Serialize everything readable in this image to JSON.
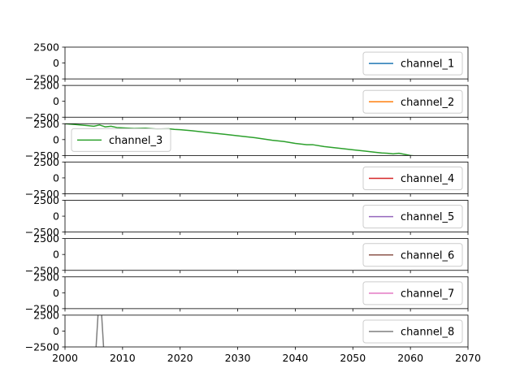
{
  "chart_data": {
    "type": "line",
    "layout": "stacked-subplots",
    "sharex": true,
    "xlim": [
      2000,
      2070
    ],
    "x_ticks": [
      2000,
      2010,
      2020,
      2030,
      2040,
      2050,
      2060,
      2070
    ],
    "x_tick_labels": [
      "2000",
      "2010",
      "2020",
      "2030",
      "2040",
      "2050",
      "2060",
      "2070"
    ],
    "grid": false,
    "subplots": [
      {
        "name": "channel_1",
        "color": "#1f77b4",
        "ylim": [
          -2500,
          2500
        ],
        "y_ticks": [
          -2500,
          0,
          2500
        ],
        "y_tick_labels": [
          "−2500",
          "0",
          "2500"
        ],
        "legend_position": "lower-right",
        "x": [],
        "y": []
      },
      {
        "name": "channel_2",
        "color": "#ff7f0e",
        "ylim": [
          -2500,
          2500
        ],
        "y_ticks": [
          -2500,
          0,
          2500
        ],
        "y_tick_labels": [
          "−2500",
          "0",
          "2500"
        ],
        "legend_position": "lower-right",
        "x": [],
        "y": []
      },
      {
        "name": "channel_3",
        "color": "#2ca02c",
        "ylim": [
          -2500,
          2500
        ],
        "y_ticks": [
          -2500,
          0,
          2500
        ],
        "y_tick_labels": [
          "−2500",
          "0",
          "2500"
        ],
        "legend_position": "lower-left",
        "x": [
          2000,
          2002,
          2004,
          2005,
          2006,
          2007,
          2008,
          2009,
          2010,
          2012,
          2014,
          2016,
          2018,
          2019,
          2020,
          2022,
          2025,
          2028,
          2030,
          2033,
          2036,
          2038,
          2040,
          2042,
          2043,
          2045,
          2048,
          2050,
          2052,
          2054,
          2055,
          2056,
          2057,
          2058,
          2060,
          2062,
          2064,
          2066,
          2068,
          2070
        ],
        "y": [
          2500,
          2350,
          2200,
          2100,
          2300,
          2000,
          2100,
          1900,
          1850,
          1750,
          1800,
          1650,
          1700,
          1600,
          1550,
          1400,
          1100,
          800,
          600,
          300,
          -100,
          -300,
          -600,
          -800,
          -800,
          -1100,
          -1400,
          -1600,
          -1800,
          -2000,
          -2100,
          -2150,
          -2250,
          -2150,
          -2500,
          -2650,
          -2700,
          -2850,
          -2950,
          -3100
        ]
      },
      {
        "name": "channel_4",
        "color": "#d62728",
        "ylim": [
          -2500,
          2500
        ],
        "y_ticks": [
          -2500,
          0,
          2500
        ],
        "y_tick_labels": [
          "−2500",
          "0",
          "2500"
        ],
        "legend_position": "lower-right",
        "x": [],
        "y": []
      },
      {
        "name": "channel_5",
        "color": "#9467bd",
        "ylim": [
          -2500,
          2500
        ],
        "y_ticks": [
          -2500,
          0,
          2500
        ],
        "y_tick_labels": [
          "−2500",
          "0",
          "2500"
        ],
        "legend_position": "lower-right",
        "x": [],
        "y": []
      },
      {
        "name": "channel_6",
        "color": "#8c564b",
        "ylim": [
          -2500,
          2500
        ],
        "y_ticks": [
          -2500,
          0,
          2500
        ],
        "y_tick_labels": [
          "−2500",
          "0",
          "2500"
        ],
        "legend_position": "lower-right",
        "x": [],
        "y": []
      },
      {
        "name": "channel_7",
        "color": "#e377c2",
        "ylim": [
          -2500,
          2500
        ],
        "y_ticks": [
          -2500,
          0,
          2500
        ],
        "y_tick_labels": [
          "−2500",
          "0",
          "2500"
        ],
        "legend_position": "lower-right",
        "x": [],
        "y": []
      },
      {
        "name": "channel_8",
        "color": "#7f7f7f",
        "ylim": [
          -2500,
          2500
        ],
        "y_ticks": [
          -2500,
          0,
          2500
        ],
        "y_tick_labels": [
          "−2500",
          "0",
          "2500"
        ],
        "legend_position": "lower-right",
        "x": [
          2005.3,
          2005.8,
          2006.3,
          2006.8
        ],
        "y": [
          -4000,
          3500,
          3500,
          -4000
        ]
      }
    ]
  }
}
